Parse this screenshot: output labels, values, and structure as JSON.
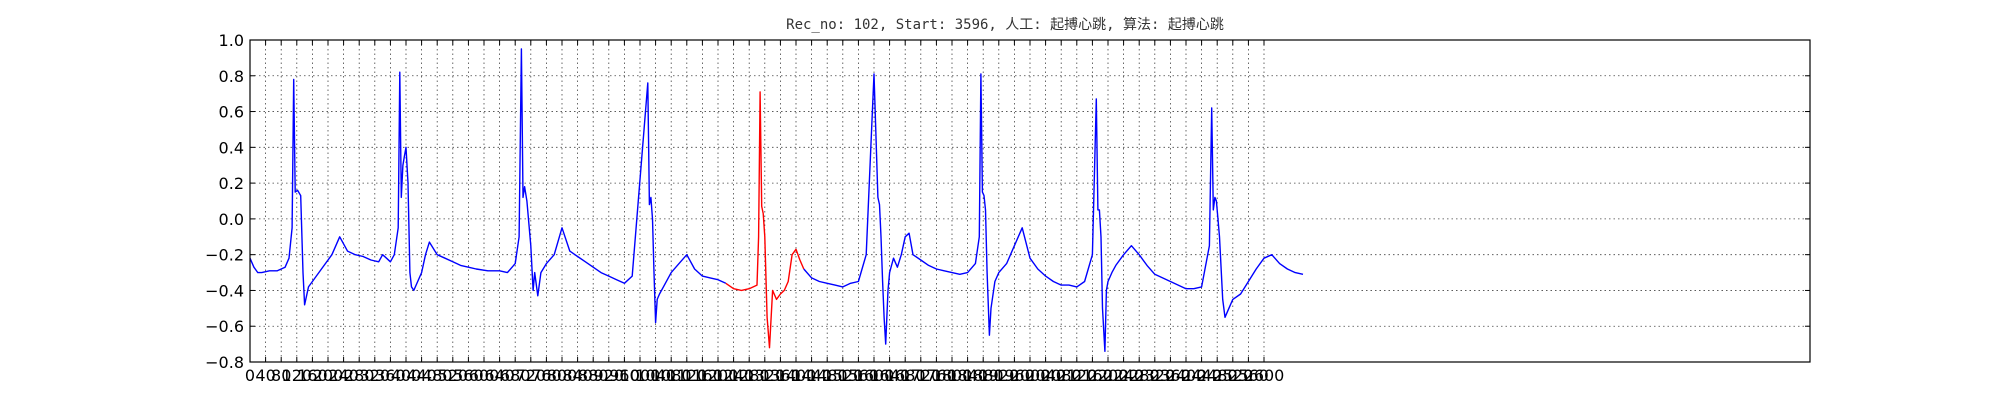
{
  "chart_data": {
    "type": "line",
    "title": "Rec_no: 102, Start: 3596, 人工: 起搏心跳, 算法: 起搏心跳",
    "xlabel": "",
    "ylabel": "",
    "xlim": [
      0,
      4000
    ],
    "ylim": [
      -0.8,
      1.0
    ],
    "grid": true,
    "x_ticks": [
      0,
      40,
      80,
      120,
      160,
      200,
      240,
      280,
      320,
      360,
      400,
      440,
      480,
      520,
      560,
      600,
      640,
      680,
      720,
      760,
      800,
      840,
      880,
      920,
      960,
      1000,
      1040,
      1080,
      1120,
      1160,
      1200,
      1240,
      1280,
      1320,
      1360,
      1400,
      1440,
      1480,
      1520,
      1560,
      1600,
      1640,
      1680,
      1720,
      1760,
      1800,
      1840,
      1880,
      1920,
      1960,
      2000,
      2040,
      2080,
      2120,
      2160,
      2200,
      2240,
      2280,
      2320,
      2360,
      2400,
      2440,
      2480,
      2520,
      2560,
      2600
    ],
    "x_tick_labels": [
      "0",
      "40",
      "80",
      "120",
      "160",
      "200",
      "240",
      "280",
      "320",
      "360",
      "400",
      "440",
      "480",
      "520",
      "560",
      "600",
      "640",
      "680",
      "720",
      "760",
      "800",
      "840",
      "880",
      "920",
      "960",
      "1000",
      "1040",
      "1080",
      "1120",
      "1160",
      "1200",
      "1240",
      "1280",
      "1320",
      "1360",
      "1400",
      "1440",
      "1480",
      "1520",
      "1560",
      "1600",
      "1640",
      "1680",
      "1720",
      "1760",
      "1800",
      "1840",
      "1880",
      "1920",
      "1960",
      "2000",
      "2040",
      "2080",
      "2120",
      "2160",
      "2200",
      "2240",
      "2280",
      "2320",
      "2360",
      "2400",
      "2440",
      "2480",
      "2520",
      "2560",
      "2600"
    ],
    "y_ticks": [
      -0.8,
      -0.6,
      -0.4,
      -0.2,
      0.0,
      0.2,
      0.4,
      0.6,
      0.8,
      1.0
    ],
    "y_tick_labels": [
      "−0.8",
      "−0.6",
      "−0.4",
      "−0.2",
      "0.0",
      "0.2",
      "0.4",
      "0.6",
      "0.8",
      "1.0"
    ],
    "series": [
      {
        "color": "#0000ff",
        "x": [
          0,
          10,
          20,
          30,
          50,
          70,
          90,
          100,
          108,
          112,
          116,
          122,
          130,
          136,
          140,
          150,
          170,
          190,
          210,
          230,
          250,
          270,
          290,
          310,
          330,
          340,
          350,
          360,
          370,
          380,
          384,
          388,
          392,
          396,
          400,
          405,
          410,
          414,
          420,
          430,
          440,
          450,
          460,
          480,
          500,
          520,
          540,
          560,
          580,
          610,
          640,
          660,
          680,
          690,
          696,
          700,
          704,
          710,
          720,
          726,
          730,
          738,
          746,
          760,
          780,
          800,
          820,
          840,
          860,
          880,
          900,
          920,
          940,
          960,
          980,
          1020,
          1024,
          1028,
          1032,
          1036,
          1040,
          1044,
          1050,
          1060,
          1080,
          1100,
          1120,
          1140,
          1160,
          1180,
          1200,
          1220
        ],
        "y": [
          -0.22,
          -0.27,
          -0.3,
          -0.3,
          -0.29,
          -0.29,
          -0.27,
          -0.22,
          -0.05,
          0.78,
          0.15,
          0.16,
          0.13,
          -0.3,
          -0.48,
          -0.38,
          -0.32,
          -0.26,
          -0.2,
          -0.1,
          -0.18,
          -0.2,
          -0.21,
          -0.23,
          -0.24,
          -0.2,
          -0.22,
          -0.24,
          -0.2,
          -0.05,
          0.82,
          0.12,
          0.3,
          0.35,
          0.4,
          0.2,
          -0.3,
          -0.38,
          -0.4,
          -0.35,
          -0.3,
          -0.2,
          -0.13,
          -0.2,
          -0.22,
          -0.24,
          -0.26,
          -0.27,
          -0.28,
          -0.29,
          -0.29,
          -0.3,
          -0.25,
          -0.1,
          0.95,
          0.12,
          0.18,
          0.1,
          -0.15,
          -0.4,
          -0.3,
          -0.43,
          -0.3,
          -0.25,
          -0.2,
          -0.05,
          -0.18,
          -0.21,
          -0.24,
          -0.27,
          -0.3,
          -0.32,
          -0.34,
          -0.36,
          -0.32,
          0.76,
          0.08,
          0.12,
          0.0,
          -0.3,
          -0.58,
          -0.45,
          -0.42,
          -0.38,
          -0.3,
          -0.25,
          -0.2,
          -0.28,
          -0.32,
          -0.33,
          -0.34,
          -0.36
        ]
      },
      {
        "color": "#ff0000",
        "x": [
          1220,
          1240,
          1260,
          1280,
          1300,
          1304,
          1308,
          1312,
          1316,
          1320,
          1326,
          1332,
          1340,
          1350,
          1360,
          1370,
          1380,
          1390,
          1400,
          1410,
          1420
        ],
        "y": [
          -0.36,
          -0.39,
          -0.4,
          -0.39,
          -0.37,
          -0.1,
          0.71,
          0.07,
          0.03,
          -0.1,
          -0.55,
          -0.72,
          -0.4,
          -0.45,
          -0.42,
          -0.4,
          -0.35,
          -0.2,
          -0.17,
          -0.23,
          -0.28
        ]
      },
      {
        "color": "#0000ff",
        "x": [
          1420,
          1440,
          1460,
          1480,
          1500,
          1520,
          1540,
          1560,
          1580,
          1600,
          1610,
          1614,
          1618,
          1622,
          1626,
          1630,
          1636,
          1640,
          1650,
          1660,
          1670,
          1680,
          1690,
          1700,
          1720,
          1740,
          1760,
          1780,
          1800,
          1820,
          1840,
          1860,
          1870,
          1874,
          1878,
          1882,
          1886,
          1890,
          1896,
          1900,
          1910,
          1920,
          1940,
          1960,
          1980,
          2000,
          2020,
          2040,
          2060,
          2080,
          2100,
          2120,
          2140,
          2160,
          2170,
          2174,
          2178,
          2182,
          2186,
          2192,
          2196,
          2200,
          2210,
          2220,
          2240,
          2260,
          2280,
          2300,
          2320,
          2340,
          2360,
          2380,
          2400,
          2420,
          2440,
          2460,
          2466,
          2470,
          2474,
          2478,
          2486,
          2494,
          2500,
          2510,
          2520,
          2540,
          2560,
          2580,
          2600,
          2620,
          2640,
          2660,
          2680,
          2700
        ],
        "y": [
          -0.28,
          -0.33,
          -0.35,
          -0.36,
          -0.37,
          -0.38,
          -0.36,
          -0.35,
          -0.2,
          0.81,
          0.12,
          0.08,
          -0.1,
          -0.35,
          -0.55,
          -0.7,
          -0.4,
          -0.3,
          -0.22,
          -0.27,
          -0.2,
          -0.1,
          -0.08,
          -0.2,
          -0.23,
          -0.26,
          -0.28,
          -0.29,
          -0.3,
          -0.31,
          -0.3,
          -0.25,
          -0.1,
          0.81,
          0.15,
          0.13,
          0.05,
          -0.3,
          -0.65,
          -0.5,
          -0.35,
          -0.3,
          -0.25,
          -0.15,
          -0.05,
          -0.22,
          -0.28,
          -0.32,
          -0.35,
          -0.37,
          -0.37,
          -0.38,
          -0.35,
          -0.2,
          0.67,
          0.05,
          0.05,
          -0.1,
          -0.5,
          -0.74,
          -0.4,
          -0.35,
          -0.3,
          -0.26,
          -0.2,
          -0.15,
          -0.2,
          -0.26,
          -0.31,
          -0.33,
          -0.35,
          -0.37,
          -0.39,
          -0.39,
          -0.38,
          -0.15,
          0.62,
          0.05,
          0.12,
          0.1,
          -0.1,
          -0.45,
          -0.55,
          -0.5,
          -0.45,
          -0.42,
          -0.35,
          -0.28,
          -0.22,
          -0.2,
          -0.25,
          -0.28,
          -0.3,
          -0.31
        ]
      }
    ]
  }
}
